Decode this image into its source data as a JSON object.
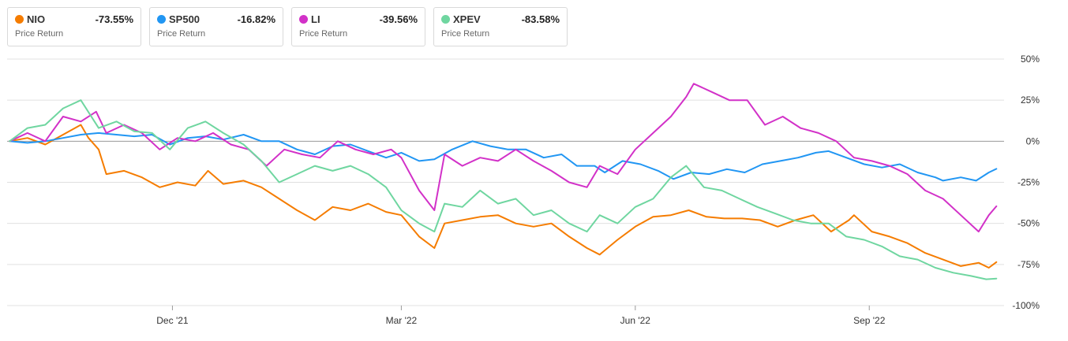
{
  "legend": [
    {
      "name": "NIO",
      "value": "-73.55%",
      "sub": "Price Return",
      "color": "#f57c00"
    },
    {
      "name": "SP500",
      "value": "-16.82%",
      "sub": "Price Return",
      "color": "#2196f3"
    },
    {
      "name": "LI",
      "value": "-39.56%",
      "sub": "Price Return",
      "color": "#d231c8"
    },
    {
      "name": "XPEV",
      "value": "-83.58%",
      "sub": "Price Return",
      "color": "#6fd6a0"
    }
  ],
  "chart_data": {
    "type": "line",
    "ylim": [
      -100,
      50
    ],
    "yticks": [
      50,
      25,
      0,
      -25,
      -50,
      -75,
      -100
    ],
    "ytick_labels": [
      "50%",
      "25%",
      "0%",
      "-25%",
      "-50%",
      "-75%",
      "-100%"
    ],
    "xlim": [
      "2021-09-27",
      "2022-10-24"
    ],
    "xticks": [
      "2021-12-01",
      "2022-03-01",
      "2022-06-01",
      "2022-09-01"
    ],
    "xtick_labels": [
      "Dec '21",
      "Mar '22",
      "Jun '22",
      "Sep '22"
    ],
    "grid": true,
    "series": [
      {
        "name": "NIO",
        "color": "#f57c00",
        "points": [
          [
            "2021-09-28",
            0
          ],
          [
            "2021-10-05",
            2
          ],
          [
            "2021-10-12",
            -2
          ],
          [
            "2021-10-19",
            4
          ],
          [
            "2021-10-26",
            10
          ],
          [
            "2021-10-29",
            2
          ],
          [
            "2021-11-02",
            -5
          ],
          [
            "2021-11-05",
            -20
          ],
          [
            "2021-11-12",
            -18
          ],
          [
            "2021-11-19",
            -22
          ],
          [
            "2021-11-26",
            -28
          ],
          [
            "2021-12-03",
            -25
          ],
          [
            "2021-12-10",
            -27
          ],
          [
            "2021-12-15",
            -18
          ],
          [
            "2021-12-21",
            -26
          ],
          [
            "2021-12-29",
            -24
          ],
          [
            "2022-01-05",
            -28
          ],
          [
            "2022-01-12",
            -35
          ],
          [
            "2022-01-19",
            -42
          ],
          [
            "2022-01-26",
            -48
          ],
          [
            "2022-02-02",
            -40
          ],
          [
            "2022-02-09",
            -42
          ],
          [
            "2022-02-16",
            -38
          ],
          [
            "2022-02-23",
            -43
          ],
          [
            "2022-03-01",
            -45
          ],
          [
            "2022-03-08",
            -58
          ],
          [
            "2022-03-14",
            -65
          ],
          [
            "2022-03-18",
            -50
          ],
          [
            "2022-03-25",
            -48
          ],
          [
            "2022-04-01",
            -46
          ],
          [
            "2022-04-08",
            -45
          ],
          [
            "2022-04-15",
            -50
          ],
          [
            "2022-04-22",
            -52
          ],
          [
            "2022-04-29",
            -50
          ],
          [
            "2022-05-06",
            -58
          ],
          [
            "2022-05-13",
            -65
          ],
          [
            "2022-05-18",
            -69
          ],
          [
            "2022-05-25",
            -60
          ],
          [
            "2022-06-01",
            -52
          ],
          [
            "2022-06-08",
            -46
          ],
          [
            "2022-06-15",
            -45
          ],
          [
            "2022-06-22",
            -42
          ],
          [
            "2022-06-29",
            -46
          ],
          [
            "2022-07-06",
            -47
          ],
          [
            "2022-07-13",
            -47
          ],
          [
            "2022-07-20",
            -48
          ],
          [
            "2022-07-27",
            -52
          ],
          [
            "2022-08-03",
            -48
          ],
          [
            "2022-08-10",
            -45
          ],
          [
            "2022-08-17",
            -55
          ],
          [
            "2022-08-24",
            -48
          ],
          [
            "2022-08-26",
            -45
          ],
          [
            "2022-09-02",
            -55
          ],
          [
            "2022-09-09",
            -58
          ],
          [
            "2022-09-16",
            -62
          ],
          [
            "2022-09-23",
            -68
          ],
          [
            "2022-09-30",
            -72
          ],
          [
            "2022-10-07",
            -76
          ],
          [
            "2022-10-14",
            -74
          ],
          [
            "2022-10-18",
            -77
          ],
          [
            "2022-10-21",
            -73.55
          ]
        ]
      },
      {
        "name": "SP500",
        "color": "#2196f3",
        "points": [
          [
            "2021-09-28",
            0
          ],
          [
            "2021-10-05",
            -1
          ],
          [
            "2021-10-12",
            0
          ],
          [
            "2021-10-19",
            2
          ],
          [
            "2021-10-26",
            4
          ],
          [
            "2021-11-02",
            5
          ],
          [
            "2021-11-09",
            4
          ],
          [
            "2021-11-16",
            3
          ],
          [
            "2021-11-23",
            4
          ],
          [
            "2021-11-30",
            -2
          ],
          [
            "2021-12-07",
            2
          ],
          [
            "2021-12-14",
            3
          ],
          [
            "2021-12-21",
            1
          ],
          [
            "2021-12-29",
            4
          ],
          [
            "2022-01-05",
            0
          ],
          [
            "2022-01-12",
            0
          ],
          [
            "2022-01-19",
            -5
          ],
          [
            "2022-01-26",
            -8
          ],
          [
            "2022-02-02",
            -3
          ],
          [
            "2022-02-09",
            -2
          ],
          [
            "2022-02-16",
            -6
          ],
          [
            "2022-02-23",
            -10
          ],
          [
            "2022-03-01",
            -7
          ],
          [
            "2022-03-08",
            -12
          ],
          [
            "2022-03-14",
            -11
          ],
          [
            "2022-03-21",
            -5
          ],
          [
            "2022-03-29",
            0
          ],
          [
            "2022-04-05",
            -3
          ],
          [
            "2022-04-12",
            -5
          ],
          [
            "2022-04-19",
            -5
          ],
          [
            "2022-04-26",
            -10
          ],
          [
            "2022-05-03",
            -8
          ],
          [
            "2022-05-09",
            -15
          ],
          [
            "2022-05-16",
            -15
          ],
          [
            "2022-05-20",
            -19
          ],
          [
            "2022-05-27",
            -12
          ],
          [
            "2022-06-03",
            -14
          ],
          [
            "2022-06-10",
            -18
          ],
          [
            "2022-06-16",
            -23
          ],
          [
            "2022-06-23",
            -19
          ],
          [
            "2022-06-30",
            -20
          ],
          [
            "2022-07-07",
            -17
          ],
          [
            "2022-07-14",
            -19
          ],
          [
            "2022-07-21",
            -14
          ],
          [
            "2022-07-28",
            -12
          ],
          [
            "2022-08-04",
            -10
          ],
          [
            "2022-08-11",
            -7
          ],
          [
            "2022-08-16",
            -6
          ],
          [
            "2022-08-23",
            -10
          ],
          [
            "2022-08-30",
            -14
          ],
          [
            "2022-09-06",
            -16
          ],
          [
            "2022-09-13",
            -14
          ],
          [
            "2022-09-20",
            -19
          ],
          [
            "2022-09-27",
            -22
          ],
          [
            "2022-09-30",
            -24
          ],
          [
            "2022-10-07",
            -22
          ],
          [
            "2022-10-13",
            -24
          ],
          [
            "2022-10-18",
            -19
          ],
          [
            "2022-10-21",
            -16.82
          ]
        ]
      },
      {
        "name": "LI",
        "color": "#d231c8",
        "points": [
          [
            "2021-09-28",
            0
          ],
          [
            "2021-10-05",
            5
          ],
          [
            "2021-10-12",
            0
          ],
          [
            "2021-10-19",
            15
          ],
          [
            "2021-10-26",
            12
          ],
          [
            "2021-11-01",
            18
          ],
          [
            "2021-11-05",
            5
          ],
          [
            "2021-11-12",
            10
          ],
          [
            "2021-11-19",
            5
          ],
          [
            "2021-11-26",
            -5
          ],
          [
            "2021-12-03",
            2
          ],
          [
            "2021-12-10",
            0
          ],
          [
            "2021-12-17",
            5
          ],
          [
            "2021-12-24",
            -2
          ],
          [
            "2021-12-31",
            -5
          ],
          [
            "2022-01-07",
            -15
          ],
          [
            "2022-01-14",
            -5
          ],
          [
            "2022-01-21",
            -8
          ],
          [
            "2022-01-28",
            -10
          ],
          [
            "2022-02-04",
            0
          ],
          [
            "2022-02-11",
            -5
          ],
          [
            "2022-02-18",
            -8
          ],
          [
            "2022-02-25",
            -5
          ],
          [
            "2022-03-01",
            -10
          ],
          [
            "2022-03-08",
            -30
          ],
          [
            "2022-03-14",
            -42
          ],
          [
            "2022-03-18",
            -8
          ],
          [
            "2022-03-25",
            -15
          ],
          [
            "2022-04-01",
            -10
          ],
          [
            "2022-04-08",
            -12
          ],
          [
            "2022-04-15",
            -5
          ],
          [
            "2022-04-22",
            -12
          ],
          [
            "2022-04-29",
            -18
          ],
          [
            "2022-05-06",
            -25
          ],
          [
            "2022-05-13",
            -28
          ],
          [
            "2022-05-18",
            -15
          ],
          [
            "2022-05-25",
            -20
          ],
          [
            "2022-06-01",
            -5
          ],
          [
            "2022-06-08",
            5
          ],
          [
            "2022-06-15",
            15
          ],
          [
            "2022-06-21",
            27
          ],
          [
            "2022-06-24",
            35
          ],
          [
            "2022-07-01",
            30
          ],
          [
            "2022-07-08",
            25
          ],
          [
            "2022-07-15",
            25
          ],
          [
            "2022-07-22",
            10
          ],
          [
            "2022-07-29",
            15
          ],
          [
            "2022-08-05",
            8
          ],
          [
            "2022-08-12",
            5
          ],
          [
            "2022-08-19",
            0
          ],
          [
            "2022-08-26",
            -10
          ],
          [
            "2022-09-02",
            -12
          ],
          [
            "2022-09-09",
            -15
          ],
          [
            "2022-09-16",
            -20
          ],
          [
            "2022-09-23",
            -30
          ],
          [
            "2022-09-30",
            -35
          ],
          [
            "2022-10-07",
            -45
          ],
          [
            "2022-10-14",
            -55
          ],
          [
            "2022-10-18",
            -45
          ],
          [
            "2022-10-21",
            -39.56
          ]
        ]
      },
      {
        "name": "XPEV",
        "color": "#6fd6a0",
        "points": [
          [
            "2021-09-28",
            0
          ],
          [
            "2021-10-05",
            8
          ],
          [
            "2021-10-12",
            10
          ],
          [
            "2021-10-19",
            20
          ],
          [
            "2021-10-26",
            25
          ],
          [
            "2021-11-02",
            8
          ],
          [
            "2021-11-09",
            12
          ],
          [
            "2021-11-16",
            6
          ],
          [
            "2021-11-23",
            5
          ],
          [
            "2021-11-30",
            -5
          ],
          [
            "2021-12-07",
            8
          ],
          [
            "2021-12-14",
            12
          ],
          [
            "2021-12-21",
            5
          ],
          [
            "2021-12-29",
            -2
          ],
          [
            "2022-01-05",
            -12
          ],
          [
            "2022-01-12",
            -25
          ],
          [
            "2022-01-19",
            -20
          ],
          [
            "2022-01-26",
            -15
          ],
          [
            "2022-02-02",
            -18
          ],
          [
            "2022-02-09",
            -15
          ],
          [
            "2022-02-16",
            -20
          ],
          [
            "2022-02-23",
            -28
          ],
          [
            "2022-03-01",
            -42
          ],
          [
            "2022-03-08",
            -50
          ],
          [
            "2022-03-14",
            -55
          ],
          [
            "2022-03-18",
            -38
          ],
          [
            "2022-03-25",
            -40
          ],
          [
            "2022-04-01",
            -30
          ],
          [
            "2022-04-08",
            -38
          ],
          [
            "2022-04-15",
            -35
          ],
          [
            "2022-04-22",
            -45
          ],
          [
            "2022-04-29",
            -42
          ],
          [
            "2022-05-06",
            -50
          ],
          [
            "2022-05-13",
            -55
          ],
          [
            "2022-05-18",
            -45
          ],
          [
            "2022-05-25",
            -50
          ],
          [
            "2022-06-01",
            -40
          ],
          [
            "2022-06-08",
            -35
          ],
          [
            "2022-06-15",
            -22
          ],
          [
            "2022-06-21",
            -15
          ],
          [
            "2022-06-28",
            -28
          ],
          [
            "2022-07-05",
            -30
          ],
          [
            "2022-07-12",
            -35
          ],
          [
            "2022-07-19",
            -40
          ],
          [
            "2022-07-26",
            -44
          ],
          [
            "2022-08-02",
            -48
          ],
          [
            "2022-08-09",
            -50
          ],
          [
            "2022-08-16",
            -50
          ],
          [
            "2022-08-23",
            -58
          ],
          [
            "2022-08-30",
            -60
          ],
          [
            "2022-09-06",
            -64
          ],
          [
            "2022-09-13",
            -70
          ],
          [
            "2022-09-20",
            -72
          ],
          [
            "2022-09-27",
            -77
          ],
          [
            "2022-10-04",
            -80
          ],
          [
            "2022-10-11",
            -82
          ],
          [
            "2022-10-17",
            -84
          ],
          [
            "2022-10-21",
            -83.58
          ]
        ]
      }
    ]
  }
}
